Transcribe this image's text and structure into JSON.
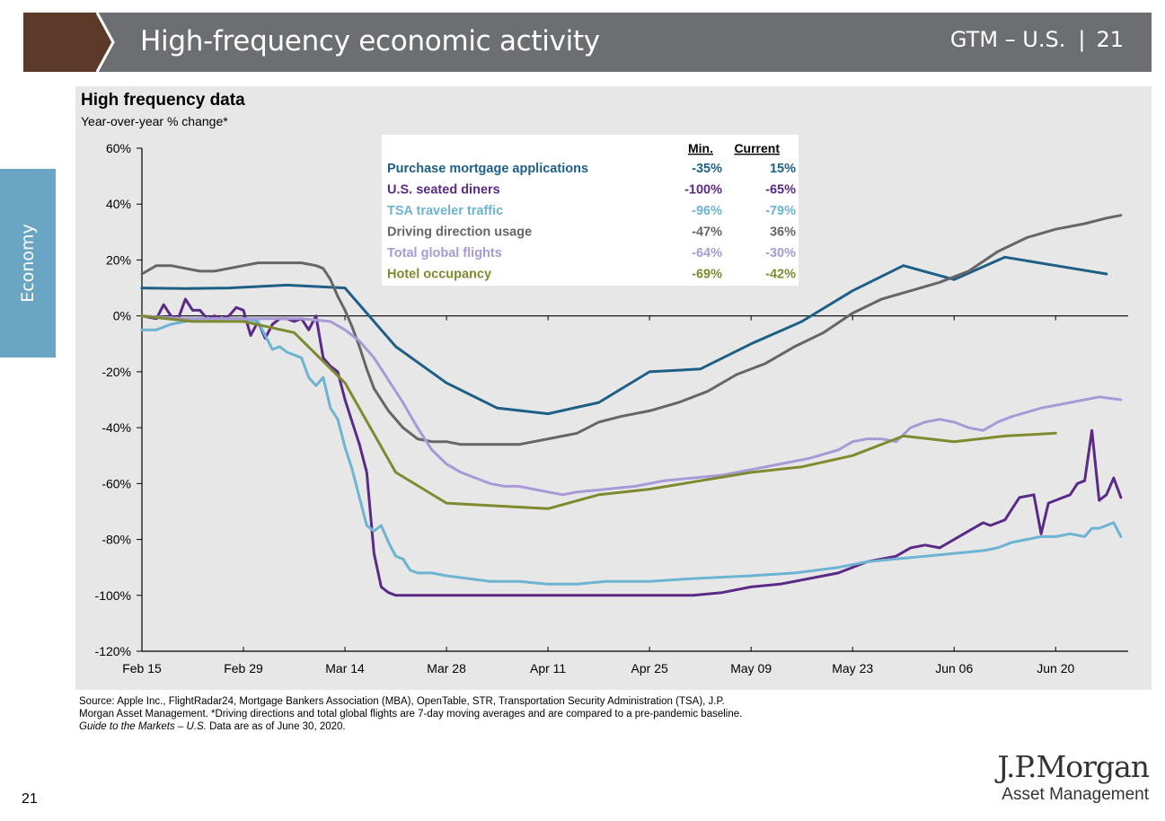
{
  "header": {
    "title": "High-frequency economic activity",
    "section": "GTM – U.S.",
    "page": "21"
  },
  "side_tab": {
    "label": "Economy"
  },
  "chart_data": {
    "type": "line",
    "title": "High frequency data",
    "subtitle": "Year-over-year % change*",
    "ylim": [
      -120,
      60
    ],
    "yticks": [
      -120,
      -100,
      -80,
      -60,
      -40,
      -20,
      0,
      20,
      40,
      60
    ],
    "ytick_labels": [
      "-120%",
      "-100%",
      "-80%",
      "-60%",
      "-40%",
      "-20%",
      "0%",
      "20%",
      "40%",
      "60%"
    ],
    "xlim": [
      0,
      136
    ],
    "xticks": [
      0,
      14,
      28,
      42,
      56,
      70,
      84,
      98,
      112,
      126
    ],
    "xtick_labels": [
      "Feb 15",
      "Feb 29",
      "Mar 14",
      "Mar 28",
      "Apr 11",
      "Apr 25",
      "May 09",
      "May 23",
      "Jun 06",
      "Jun 20"
    ],
    "legend": {
      "header_min": "Min.",
      "header_current": "Current",
      "placement": "top-center"
    },
    "series": [
      {
        "name": "Purchase mortgage applications",
        "min": "-35%",
        "current": "15%",
        "color": "#1e5f85",
        "x": [
          0,
          6,
          12,
          20,
          28,
          35,
          42,
          49,
          56,
          63,
          70,
          77,
          84,
          91,
          98,
          105,
          112,
          119,
          126,
          133
        ],
        "y": [
          10,
          9.8,
          10,
          11,
          10,
          -11,
          -24,
          -33,
          -35,
          -31,
          -20,
          -19,
          -10,
          -2,
          9,
          18,
          13,
          21,
          18,
          15
        ]
      },
      {
        "name": "U.S. seated diners",
        "min": "-100%",
        "current": "-65%",
        "color": "#5b2a86",
        "x": [
          0,
          2,
          3,
          4,
          5,
          6,
          7,
          8,
          9,
          10,
          11,
          12,
          13,
          14,
          15,
          16,
          17,
          18,
          19,
          20,
          21,
          22,
          23,
          24,
          25,
          26,
          27,
          28,
          29,
          30,
          31,
          32,
          33,
          34,
          35,
          36,
          42,
          49,
          56,
          63,
          70,
          76,
          80,
          84,
          88,
          92,
          96,
          100,
          104,
          106,
          108,
          110,
          112,
          114,
          116,
          117,
          118,
          119,
          120,
          121,
          123,
          124,
          125,
          126,
          127,
          128,
          129,
          130,
          131,
          132,
          133,
          134,
          135
        ],
        "y": [
          0,
          -1,
          4,
          0,
          -1,
          6,
          2,
          2,
          -1,
          0,
          -1,
          0,
          3,
          2,
          -7,
          -2,
          -8,
          -3,
          -1,
          -1,
          -2,
          -1,
          -5,
          0,
          -15,
          -18,
          -20,
          -30,
          -38,
          -46,
          -56,
          -85,
          -97,
          -99,
          -100,
          -100,
          -100,
          -100,
          -100,
          -100,
          -100,
          -100,
          -99,
          -97,
          -96,
          -94,
          -92,
          -88,
          -86,
          -83,
          -82,
          -83,
          -80,
          -77,
          -74,
          -75,
          -74,
          -73,
          -69,
          -65,
          -64,
          -78,
          -67,
          -66,
          -65,
          -64,
          -60,
          -59,
          -41,
          -66,
          -64,
          -58,
          -65
        ]
      },
      {
        "name": "TSA traveler traffic",
        "min": "-96%",
        "current": "-79%",
        "color": "#6db3d2",
        "x": [
          0,
          2,
          4,
          6,
          8,
          10,
          12,
          14,
          16,
          18,
          19,
          20,
          21,
          22,
          23,
          24,
          25,
          26,
          27,
          28,
          29,
          30,
          31,
          32,
          33,
          34,
          35,
          36,
          37,
          38,
          40,
          42,
          45,
          48,
          52,
          56,
          60,
          64,
          70,
          76,
          84,
          90,
          96,
          100,
          104,
          108,
          112,
          116,
          118,
          120,
          122,
          124,
          126,
          128,
          130,
          131,
          132,
          133,
          134,
          135
        ],
        "y": [
          -5,
          -5,
          -3,
          -2,
          -1,
          -1,
          -1,
          -1,
          -2,
          -12,
          -11,
          -13,
          -14,
          -15,
          -22,
          -25,
          -22,
          -33,
          -37,
          -47,
          -55,
          -65,
          -75,
          -77,
          -75,
          -81,
          -86,
          -87,
          -91,
          -92,
          -92,
          -93,
          -94,
          -95,
          -95,
          -96,
          -96,
          -95,
          -95,
          -94,
          -93,
          -92,
          -90,
          -88,
          -87,
          -86,
          -85,
          -84,
          -83,
          -81,
          -80,
          -79,
          -79,
          -78,
          -79,
          -76,
          -76,
          -75,
          -74,
          -79
        ]
      },
      {
        "name": "Driving direction usage",
        "min": "-47%",
        "current": "36%",
        "color": "#666666",
        "x": [
          0,
          2,
          4,
          6,
          8,
          10,
          12,
          14,
          16,
          18,
          20,
          22,
          24,
          25,
          26,
          27,
          28,
          29,
          30,
          31,
          32,
          34,
          36,
          38,
          40,
          42,
          44,
          48,
          52,
          56,
          60,
          63,
          66,
          70,
          74,
          78,
          82,
          86,
          90,
          94,
          98,
          102,
          106,
          110,
          114,
          118,
          122,
          126,
          130,
          133,
          135
        ],
        "y": [
          15,
          18,
          18,
          17,
          16,
          16,
          17,
          18,
          19,
          19,
          19,
          19,
          18,
          17,
          13,
          7,
          2,
          -4,
          -11,
          -19,
          -26,
          -34,
          -40,
          -44,
          -45,
          -45,
          -46,
          -46,
          -46,
          -44,
          -42,
          -38,
          -36,
          -34,
          -31,
          -27,
          -21,
          -17,
          -11,
          -6,
          1,
          6,
          9,
          12,
          16,
          23,
          28,
          31,
          33,
          35,
          36
        ]
      },
      {
        "name": "Total global flights",
        "min": "-64%",
        "current": "-30%",
        "color": "#a89ad6",
        "x": [
          0,
          6,
          12,
          18,
          22,
          26,
          28,
          30,
          32,
          34,
          36,
          38,
          40,
          42,
          44,
          46,
          48,
          50,
          52,
          54,
          56,
          58,
          60,
          64,
          68,
          72,
          76,
          80,
          84,
          88,
          92,
          96,
          98,
          100,
          102,
          104,
          106,
          108,
          110,
          112,
          114,
          116,
          118,
          120,
          124,
          128,
          132,
          135
        ],
        "y": [
          0,
          -1,
          -1,
          -1,
          -1,
          -2,
          -5,
          -9,
          -15,
          -23,
          -31,
          -40,
          -48,
          -53,
          -56,
          -58,
          -60,
          -61,
          -61,
          -62,
          -63,
          -64,
          -63,
          -62,
          -61,
          -59,
          -58,
          -57,
          -55,
          -53,
          -51,
          -48,
          -45,
          -44,
          -44,
          -45,
          -40,
          -38,
          -37,
          -38,
          -40,
          -41,
          -38,
          -36,
          -33,
          -31,
          -29,
          -30
        ]
      },
      {
        "name": "Hotel occupancy",
        "min": "-69%",
        "current": "-42%",
        "color": "#7f8a2e",
        "x": [
          0,
          7,
          14,
          21,
          28,
          35,
          42,
          49,
          56,
          63,
          70,
          77,
          84,
          91,
          98,
          105,
          112,
          119,
          126
        ],
        "y": [
          0,
          -2,
          -2,
          -6,
          -24,
          -56,
          -67,
          -68,
          -69,
          -64,
          -62,
          -59,
          -56,
          -54,
          -50,
          -43,
          -45,
          -43,
          -42
        ]
      }
    ]
  },
  "source": {
    "line1": "Source: Apple Inc., FlightRadar24, Mortgage Bankers Association (MBA), OpenTable, STR, Transportation Security Administration (TSA), J.P.",
    "line2": "Morgan Asset Management. *Driving directions and total global flights are 7-day moving averages and are compared to a pre-pandemic baseline.",
    "guide": "Guide to the Markets – U.S.",
    "date_note": " Data are as of June 30, 2020."
  },
  "footer": {
    "page_number": "21"
  },
  "logo": {
    "name": "J.P.Morgan",
    "sub": "Asset Management"
  }
}
